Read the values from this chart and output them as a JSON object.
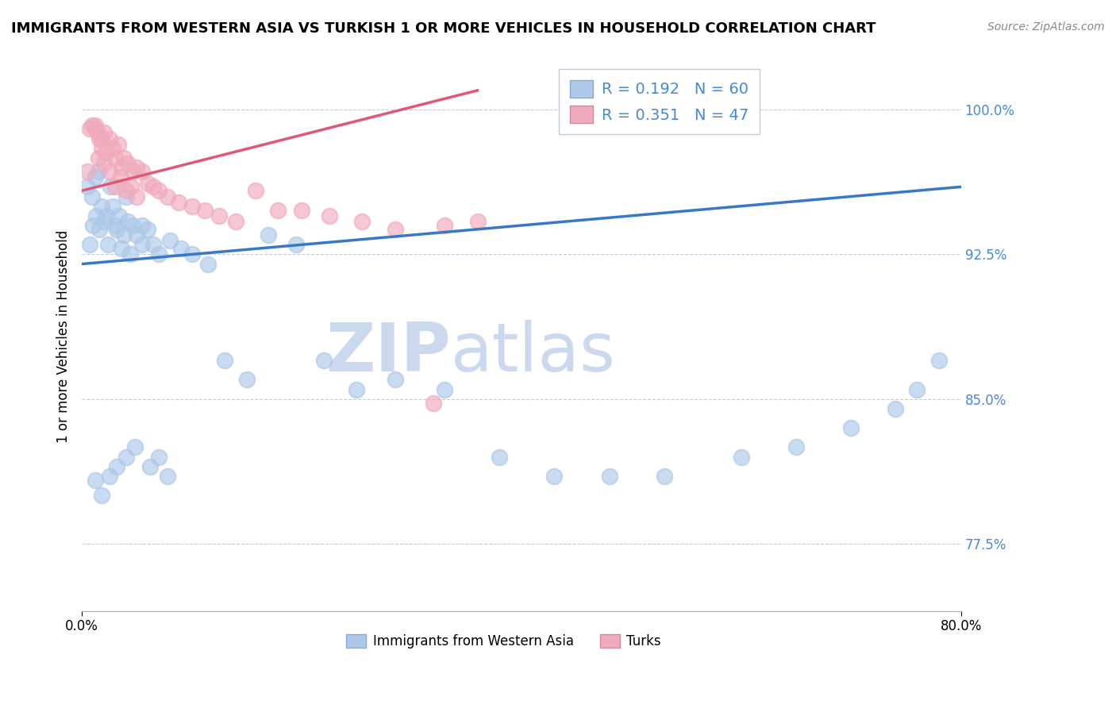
{
  "title": "IMMIGRANTS FROM WESTERN ASIA VS TURKISH 1 OR MORE VEHICLES IN HOUSEHOLD CORRELATION CHART",
  "source": "Source: ZipAtlas.com",
  "ylabel_label": "1 or more Vehicles in Household",
  "legend_label1": "Immigrants from Western Asia",
  "legend_label2": "Turks",
  "legend_R1": "R = 0.192",
  "legend_N1": "N = 60",
  "legend_R2": "R = 0.351",
  "legend_N2": "N = 47",
  "blue_color": "#adc8e8",
  "pink_color": "#f0aabb",
  "blue_line_color": "#3878c8",
  "pink_line_color": "#e05878",
  "tick_color": "#4488dd",
  "xmin": 0.0,
  "xmax": 0.8,
  "ymin": 0.74,
  "ymax": 1.025,
  "ytick_vals": [
    0.775,
    0.85,
    0.925,
    1.0
  ],
  "ytick_labels": [
    "77.5%",
    "85.0%",
    "92.5%",
    "100.0%"
  ],
  "xtick_vals": [
    0.0,
    0.8
  ],
  "xtick_labels": [
    "0.0%",
    "80.0%"
  ],
  "blue_x": [
    0.005,
    0.007,
    0.009,
    0.01,
    0.012,
    0.013,
    0.015,
    0.016,
    0.018,
    0.02,
    0.022,
    0.024,
    0.026,
    0.028,
    0.03,
    0.032,
    0.034,
    0.036,
    0.038,
    0.04,
    0.042,
    0.044,
    0.046,
    0.05,
    0.055,
    0.06,
    0.065,
    0.07,
    0.08,
    0.09,
    0.1,
    0.115,
    0.13,
    0.15,
    0.17,
    0.195,
    0.22,
    0.25,
    0.285,
    0.33,
    0.38,
    0.43,
    0.48,
    0.53,
    0.6,
    0.65,
    0.7,
    0.74,
    0.76,
    0.78,
    0.012,
    0.018,
    0.025,
    0.032,
    0.04,
    0.048,
    0.055,
    0.062,
    0.07,
    0.078
  ],
  "blue_y": [
    0.96,
    0.93,
    0.955,
    0.94,
    0.965,
    0.945,
    0.968,
    0.938,
    0.95,
    0.942,
    0.945,
    0.93,
    0.96,
    0.95,
    0.94,
    0.938,
    0.945,
    0.928,
    0.935,
    0.955,
    0.942,
    0.925,
    0.94,
    0.935,
    0.94,
    0.938,
    0.93,
    0.925,
    0.932,
    0.928,
    0.925,
    0.92,
    0.87,
    0.86,
    0.935,
    0.93,
    0.87,
    0.855,
    0.86,
    0.855,
    0.82,
    0.81,
    0.81,
    0.81,
    0.82,
    0.825,
    0.835,
    0.845,
    0.855,
    0.87,
    0.808,
    0.8,
    0.81,
    0.815,
    0.82,
    0.825,
    0.93,
    0.815,
    0.82,
    0.81
  ],
  "pink_x": [
    0.005,
    0.007,
    0.009,
    0.012,
    0.014,
    0.016,
    0.018,
    0.02,
    0.022,
    0.025,
    0.028,
    0.03,
    0.033,
    0.036,
    0.038,
    0.042,
    0.046,
    0.05,
    0.055,
    0.06,
    0.065,
    0.07,
    0.078,
    0.088,
    0.1,
    0.112,
    0.125,
    0.14,
    0.158,
    0.178,
    0.2,
    0.225,
    0.255,
    0.285,
    0.32,
    0.36,
    0.33,
    0.015,
    0.02,
    0.025,
    0.03,
    0.035,
    0.04,
    0.045,
    0.05,
    0.012,
    0.018
  ],
  "pink_y": [
    0.968,
    0.99,
    0.992,
    0.99,
    0.988,
    0.985,
    0.98,
    0.988,
    0.978,
    0.985,
    0.98,
    0.975,
    0.982,
    0.97,
    0.975,
    0.972,
    0.968,
    0.97,
    0.968,
    0.962,
    0.96,
    0.958,
    0.955,
    0.952,
    0.95,
    0.948,
    0.945,
    0.942,
    0.958,
    0.948,
    0.948,
    0.945,
    0.942,
    0.938,
    0.848,
    0.942,
    0.94,
    0.975,
    0.972,
    0.968,
    0.96,
    0.965,
    0.958,
    0.96,
    0.955,
    0.992,
    0.985
  ],
  "watermark_top": "ZIP",
  "watermark_bot": "atlas",
  "watermark_color": "#ccd8ee",
  "blue_trend_x0": 0.0,
  "blue_trend_x1": 0.8,
  "blue_trend_y0": 0.92,
  "blue_trend_y1": 0.96,
  "pink_trend_x0": 0.0,
  "pink_trend_x1": 0.36,
  "pink_trend_y0": 0.958,
  "pink_trend_y1": 1.01
}
